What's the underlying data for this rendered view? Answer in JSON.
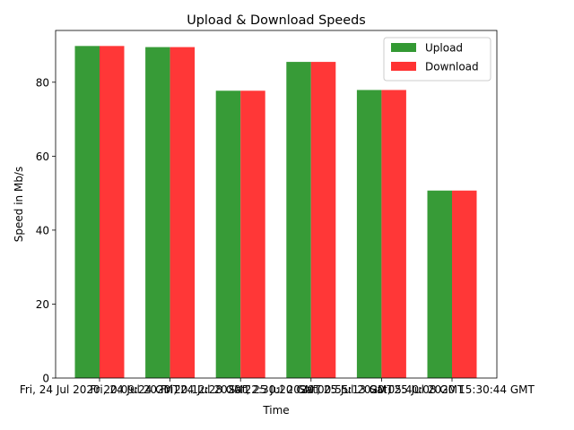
{
  "chart_data": {
    "type": "bar",
    "title": "Upload & Download Speeds",
    "xlabel": "Time",
    "ylabel": "Speed in Mb/s",
    "ylim": [
      0,
      94
    ],
    "yticks": [
      "0",
      "20",
      "40",
      "60",
      "80"
    ],
    "grid": false,
    "legend_position": "top-right",
    "categories": [
      "Fri, 24 Jul 2020 20:09:24 GMT",
      "Fri, 24 Jul 2020 20:12:28 GMT",
      "Fri, 24 Jul 2020 22:30:20 GMT",
      "Sat, 25 Jul 2020 00:55:13 GMT",
      "Sat, 25 Jul 2020 05:40:08 GMT",
      "Sat, 25 Jul 2020 15:30:44 GMT"
    ],
    "series": [
      {
        "name": "Upload",
        "color": "#339933",
        "values": [
          89.8,
          89.5,
          77.7,
          85.5,
          77.9,
          50.7
        ]
      },
      {
        "name": "Download",
        "color": "#ff3333",
        "values": [
          89.8,
          89.5,
          77.7,
          85.5,
          77.9,
          50.7
        ]
      }
    ]
  }
}
